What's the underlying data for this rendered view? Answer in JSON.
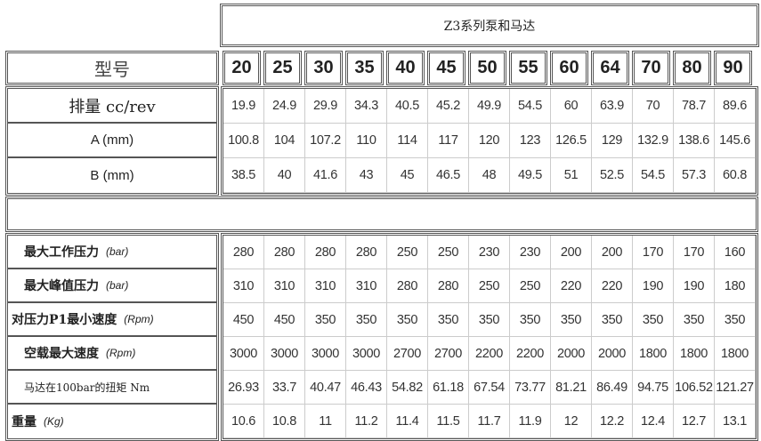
{
  "title": "Z3系列泵和马达",
  "header": {
    "label": "型号",
    "models": [
      "20",
      "25",
      "30",
      "35",
      "40",
      "45",
      "50",
      "55",
      "60",
      "64",
      "70",
      "80",
      "90"
    ]
  },
  "top_rows": [
    {
      "label": "排量 cc/rev",
      "values": [
        "19.9",
        "24.9",
        "29.9",
        "34.3",
        "40.5",
        "45.2",
        "49.9",
        "54.5",
        "60",
        "63.9",
        "70",
        "78.7",
        "89.6"
      ]
    },
    {
      "label": "A (mm)",
      "values": [
        "100.8",
        "104",
        "107.2",
        "110",
        "114",
        "117",
        "120",
        "123",
        "126.5",
        "129",
        "132.9",
        "138.6",
        "145.6"
      ]
    },
    {
      "label": "B (mm)",
      "values": [
        "38.5",
        "40",
        "41.6",
        "43",
        "45",
        "46.5",
        "48",
        "49.5",
        "51",
        "52.5",
        "54.5",
        "57.3",
        "60.8"
      ]
    }
  ],
  "bottom_rows": [
    {
      "label": "最大工作压力",
      "unit": "(bar)",
      "values": [
        "280",
        "280",
        "280",
        "280",
        "250",
        "250",
        "230",
        "230",
        "200",
        "200",
        "170",
        "170",
        "160"
      ]
    },
    {
      "label": "最大峰值压力",
      "unit": "(bar)",
      "values": [
        "310",
        "310",
        "310",
        "310",
        "280",
        "280",
        "250",
        "250",
        "220",
        "220",
        "190",
        "190",
        "180"
      ]
    },
    {
      "label": "对压力P1最小速度",
      "unit": "(Rpm)",
      "values": [
        "450",
        "450",
        "350",
        "350",
        "350",
        "350",
        "350",
        "350",
        "350",
        "350",
        "350",
        "350",
        "350"
      ]
    },
    {
      "label": "空载最大速度",
      "unit": "(Rpm)",
      "values": [
        "3000",
        "3000",
        "3000",
        "3000",
        "2700",
        "2700",
        "2200",
        "2200",
        "2000",
        "2000",
        "1800",
        "1800",
        "1800"
      ]
    },
    {
      "label": "马达在100bar的扭矩 Nm",
      "unit": "",
      "values": [
        "26.93",
        "33.7",
        "40.47",
        "46.43",
        "54.82",
        "61.18",
        "67.54",
        "73.77",
        "81.21",
        "86.49",
        "94.75",
        "106.52",
        "121.27"
      ]
    },
    {
      "label": "重量",
      "unit": "(Kg)",
      "values": [
        "10.6",
        "10.8",
        "11",
        "11.2",
        "11.4",
        "11.5",
        "11.7",
        "11.9",
        "12",
        "12.2",
        "12.4",
        "12.7",
        "13.1"
      ]
    }
  ]
}
